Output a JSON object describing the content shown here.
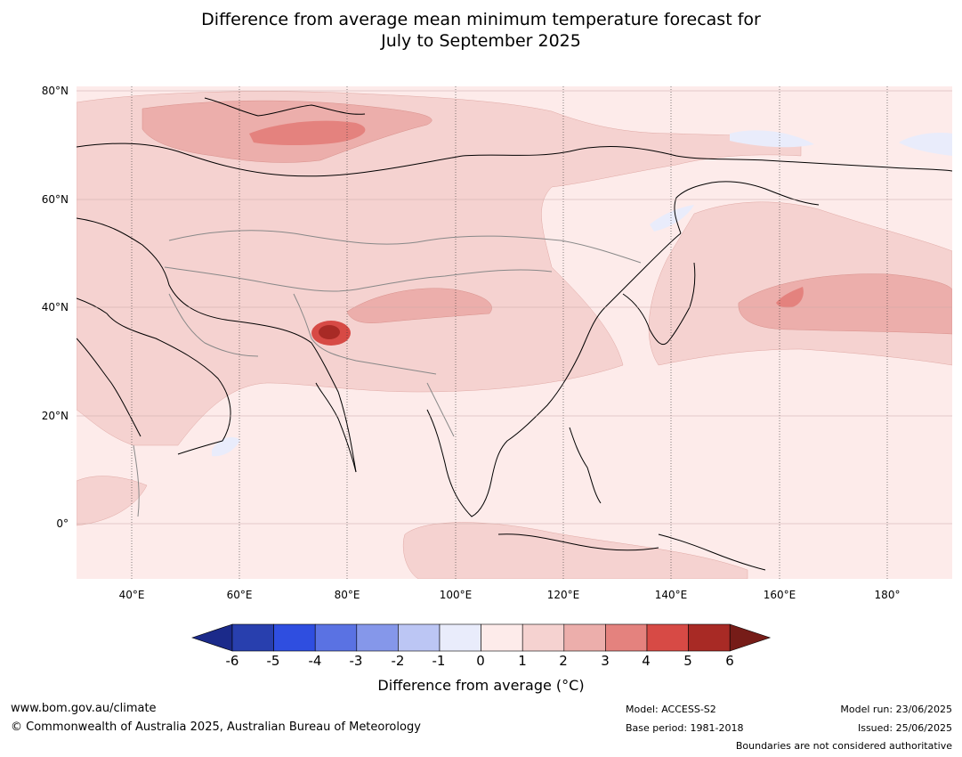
{
  "title": {
    "line1": "Difference from average mean minimum temperature forecast for",
    "line2": "July to September 2025"
  },
  "map": {
    "lon_range": [
      30,
      192
    ],
    "lat_range": [
      -10,
      81
    ],
    "lon_ticks": [
      "40°E",
      "60°E",
      "80°E",
      "100°E",
      "120°E",
      "140°E",
      "160°E",
      "180°"
    ],
    "lat_ticks": [
      "80°N",
      "60°N",
      "40°N",
      "20°N",
      "0°"
    ]
  },
  "colorbar": {
    "labels": [
      "-6",
      "-5",
      "-4",
      "-3",
      "-2",
      "-1",
      "0",
      "1",
      "2",
      "3",
      "4",
      "5",
      "6"
    ],
    "colors": [
      "#1b2a8a",
      "#283fae",
      "#2f4ee0",
      "#5a72e3",
      "#8597ea",
      "#bcc6f4",
      "#e9ecfb",
      "#fdebea",
      "#f5d2d0",
      "#ecaeab",
      "#e4827e",
      "#d74a45",
      "#a82a25",
      "#761c18"
    ],
    "title": "Difference from average (°C)"
  },
  "footer": {
    "website": "www.bom.gov.au/climate",
    "copyright": "© Commonwealth of Australia 2025, Australian Bureau of Meteorology",
    "model": "Model: ACCESS-S2",
    "base_period": "Base period: 1981-2018",
    "model_run": "Model run: 23/06/2025",
    "issued": "Issued: 25/06/2025",
    "disclaimer": "Boundaries are not considered authoritative"
  }
}
